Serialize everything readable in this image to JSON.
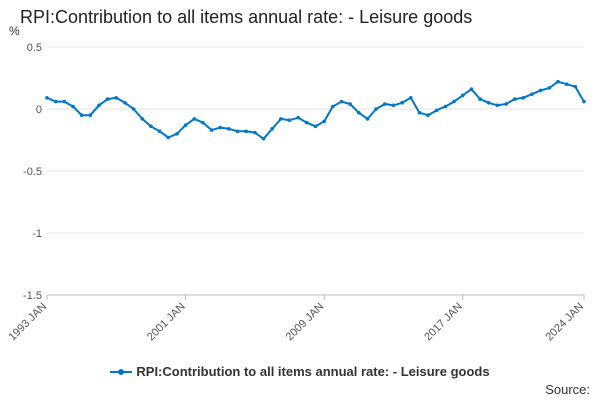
{
  "chart_data": {
    "type": "line",
    "title": "RPI:Contribution to all items annual rate: - Leisure goods",
    "ylabel": "%",
    "xlabel": "",
    "ylim": [
      -1.5,
      0.5
    ],
    "yticks": [
      "0.5",
      "0",
      "-0.5",
      "-1",
      "-1.5"
    ],
    "ytick_values": [
      0.5,
      0,
      -0.5,
      -1,
      -1.5
    ],
    "xlim": [
      1993.0,
      2024.0
    ],
    "xticks": [
      "1993 JAN",
      "2001 JAN",
      "2009 JAN",
      "2017 JAN",
      "2024 JAN"
    ],
    "xtick_values": [
      1993.0,
      2001.0,
      2009.0,
      2017.0,
      2024.0
    ],
    "grid": true,
    "legend_position": "bottom",
    "series": [
      {
        "name": "RPI:Contribution to all items annual rate: - Leisure goods",
        "color": "#0077c8",
        "x": [
          1993.0,
          1993.5,
          1994.0,
          1994.5,
          1995.0,
          1995.5,
          1996.0,
          1996.5,
          1997.0,
          1997.5,
          1998.0,
          1998.5,
          1999.0,
          1999.5,
          2000.0,
          2000.5,
          2001.0,
          2001.5,
          2002.0,
          2002.5,
          2003.0,
          2003.5,
          2004.0,
          2004.5,
          2005.0,
          2005.5,
          2006.0,
          2006.5,
          2007.0,
          2007.5,
          2008.0,
          2008.5,
          2009.0,
          2009.5,
          2010.0,
          2010.5,
          2011.0,
          2011.5,
          2012.0,
          2012.5,
          2013.0,
          2013.5,
          2014.0,
          2014.5,
          2015.0,
          2015.5,
          2016.0,
          2016.5,
          2017.0,
          2017.5,
          2018.0,
          2018.5,
          2019.0,
          2019.5,
          2020.0,
          2020.5,
          2021.0,
          2021.5,
          2022.0,
          2022.5,
          2023.0,
          2023.5,
          2024.0
        ],
        "y": [
          0.09,
          0.06,
          0.06,
          0.02,
          -0.05,
          -0.05,
          0.03,
          0.08,
          0.09,
          0.05,
          0.0,
          -0.08,
          -0.14,
          -0.18,
          -0.23,
          -0.2,
          -0.13,
          -0.08,
          -0.11,
          -0.17,
          -0.15,
          -0.16,
          -0.18,
          -0.18,
          -0.19,
          -0.24,
          -0.16,
          -0.08,
          -0.09,
          -0.07,
          -0.11,
          -0.14,
          -0.1,
          0.02,
          0.06,
          0.04,
          -0.03,
          -0.08,
          0.0,
          0.04,
          0.03,
          0.05,
          0.09,
          -0.03,
          -0.05,
          -0.01,
          0.02,
          0.06,
          0.11,
          0.16,
          0.08,
          0.05,
          0.03,
          0.04,
          0.08,
          0.09,
          0.12,
          0.15,
          0.17,
          0.22,
          0.2,
          0.18,
          0.06
        ]
      }
    ]
  },
  "source_label": "Source:"
}
